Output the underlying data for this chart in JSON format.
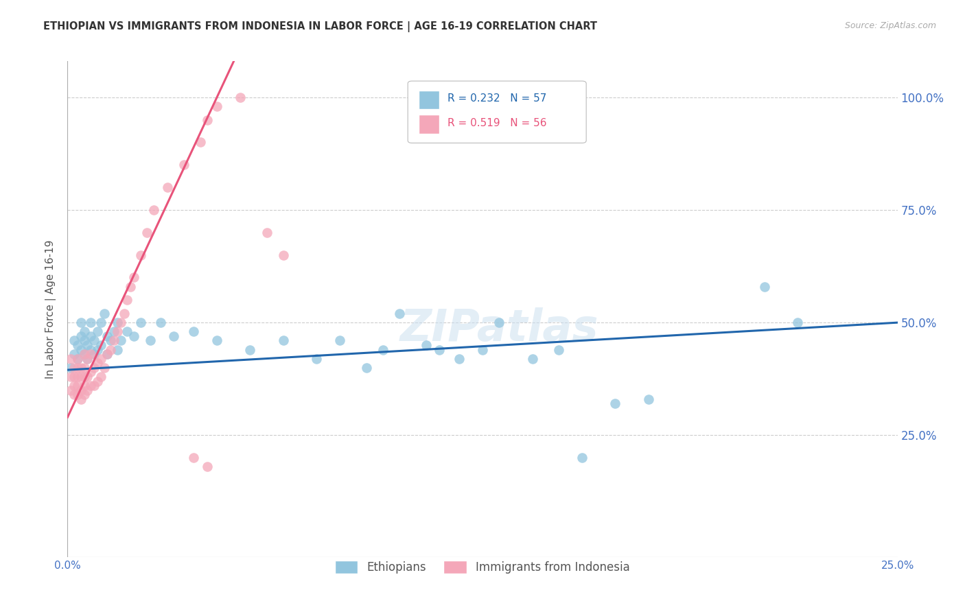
{
  "title": "ETHIOPIAN VS IMMIGRANTS FROM INDONESIA IN LABOR FORCE | AGE 16-19 CORRELATION CHART",
  "source": "Source: ZipAtlas.com",
  "ylabel": "In Labor Force | Age 16-19",
  "xlim": [
    0.0,
    0.25
  ],
  "ylim": [
    -0.02,
    1.08
  ],
  "legend_ethiopians": "Ethiopians",
  "legend_indonesia": "Immigrants from Indonesia",
  "R_ethiopians": 0.232,
  "N_ethiopians": 57,
  "R_indonesia": 0.519,
  "N_indonesia": 56,
  "blue_color": "#92C5DE",
  "pink_color": "#F4A7B9",
  "blue_line_color": "#2166AC",
  "pink_line_color": "#E8537A",
  "title_color": "#333333",
  "right_tick_color": "#4472C4",
  "background_color": "#ffffff",
  "grid_color": "#cccccc",
  "watermark": "ZIPatlas",
  "eth_x": [
    0.001,
    0.002,
    0.002,
    0.003,
    0.003,
    0.004,
    0.004,
    0.004,
    0.005,
    0.005,
    0.005,
    0.006,
    0.006,
    0.007,
    0.007,
    0.007,
    0.008,
    0.008,
    0.009,
    0.009,
    0.01,
    0.01,
    0.011,
    0.012,
    0.012,
    0.013,
    0.014,
    0.015,
    0.015,
    0.016,
    0.018,
    0.02,
    0.022,
    0.025,
    0.028,
    0.032,
    0.038,
    0.045,
    0.055,
    0.065,
    0.075,
    0.082,
    0.09,
    0.095,
    0.1,
    0.108,
    0.112,
    0.118,
    0.125,
    0.13,
    0.14,
    0.148,
    0.155,
    0.165,
    0.175,
    0.21,
    0.22
  ],
  "eth_y": [
    0.4,
    0.43,
    0.46,
    0.42,
    0.45,
    0.44,
    0.47,
    0.5,
    0.43,
    0.46,
    0.48,
    0.42,
    0.45,
    0.44,
    0.47,
    0.5,
    0.43,
    0.46,
    0.44,
    0.48,
    0.45,
    0.5,
    0.52,
    0.43,
    0.47,
    0.46,
    0.48,
    0.44,
    0.5,
    0.46,
    0.48,
    0.47,
    0.5,
    0.46,
    0.5,
    0.47,
    0.48,
    0.46,
    0.44,
    0.46,
    0.42,
    0.46,
    0.4,
    0.44,
    0.52,
    0.45,
    0.44,
    0.42,
    0.44,
    0.5,
    0.42,
    0.44,
    0.2,
    0.32,
    0.33,
    0.58,
    0.5
  ],
  "ind_x": [
    0.001,
    0.001,
    0.001,
    0.002,
    0.002,
    0.002,
    0.002,
    0.003,
    0.003,
    0.003,
    0.003,
    0.003,
    0.004,
    0.004,
    0.004,
    0.004,
    0.005,
    0.005,
    0.005,
    0.005,
    0.005,
    0.006,
    0.006,
    0.006,
    0.007,
    0.007,
    0.007,
    0.008,
    0.008,
    0.009,
    0.009,
    0.01,
    0.01,
    0.011,
    0.012,
    0.013,
    0.014,
    0.015,
    0.016,
    0.017,
    0.018,
    0.019,
    0.02,
    0.022,
    0.024,
    0.026,
    0.03,
    0.035,
    0.04,
    0.042,
    0.045,
    0.052,
    0.06,
    0.065,
    0.038,
    0.042
  ],
  "ind_y": [
    0.35,
    0.38,
    0.42,
    0.34,
    0.36,
    0.38,
    0.4,
    0.34,
    0.36,
    0.38,
    0.4,
    0.42,
    0.33,
    0.35,
    0.38,
    0.4,
    0.34,
    0.36,
    0.38,
    0.4,
    0.43,
    0.35,
    0.38,
    0.42,
    0.36,
    0.39,
    0.43,
    0.36,
    0.4,
    0.37,
    0.41,
    0.38,
    0.42,
    0.4,
    0.43,
    0.44,
    0.46,
    0.48,
    0.5,
    0.52,
    0.55,
    0.58,
    0.6,
    0.65,
    0.7,
    0.75,
    0.8,
    0.85,
    0.9,
    0.95,
    0.98,
    1.0,
    0.7,
    0.65,
    0.2,
    0.18
  ]
}
